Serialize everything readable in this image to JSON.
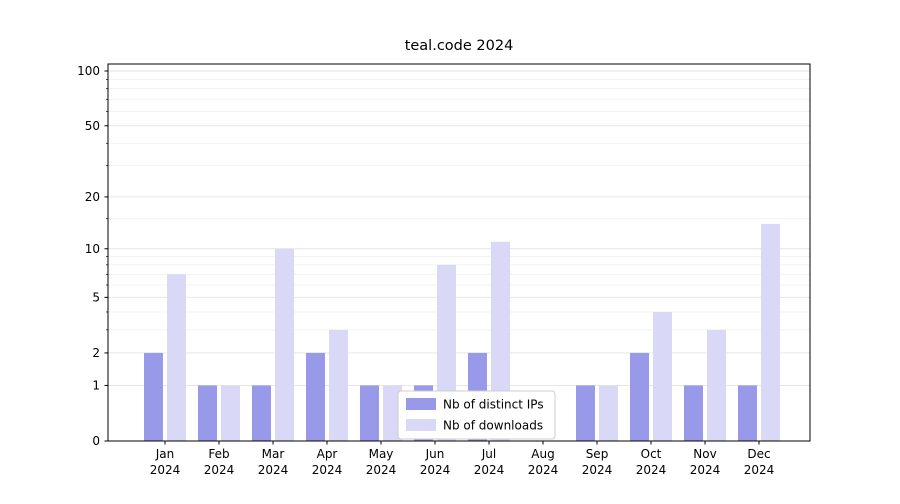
{
  "chart_data": {
    "type": "bar",
    "title": "teal.code 2024",
    "categories": [
      "Jan 2024",
      "Feb 2024",
      "Mar 2024",
      "Apr 2024",
      "May 2024",
      "Jun 2024",
      "Jul 2024",
      "Aug 2024",
      "Sep 2024",
      "Oct 2024",
      "Nov 2024",
      "Dec 2024"
    ],
    "series": [
      {
        "name": "Nb of distinct IPs",
        "color": "#9999ea",
        "values": [
          2,
          1,
          1,
          2,
          1,
          1,
          2,
          0,
          1,
          2,
          1,
          1
        ]
      },
      {
        "name": "Nb of downloads",
        "color": "#d9d9f7",
        "values": [
          7,
          1,
          10,
          3,
          1,
          8,
          11,
          0,
          1,
          4,
          3,
          14
        ]
      }
    ],
    "y_ticks": [
      0,
      1,
      2,
      5,
      10,
      20,
      50,
      100
    ],
    "minor_gridlines": [
      3,
      4,
      6,
      7,
      8,
      9,
      15,
      30,
      40,
      60,
      70,
      80,
      90
    ],
    "scale": "log1p",
    "ylim": [
      0,
      110
    ],
    "grid": true,
    "legend_position": "lower center",
    "colors": {
      "axis": "#000000",
      "major_grid": "#e3e3e3",
      "minor_grid": "#efefef",
      "legend_border": "#cccccc",
      "background": "#ffffff"
    }
  }
}
